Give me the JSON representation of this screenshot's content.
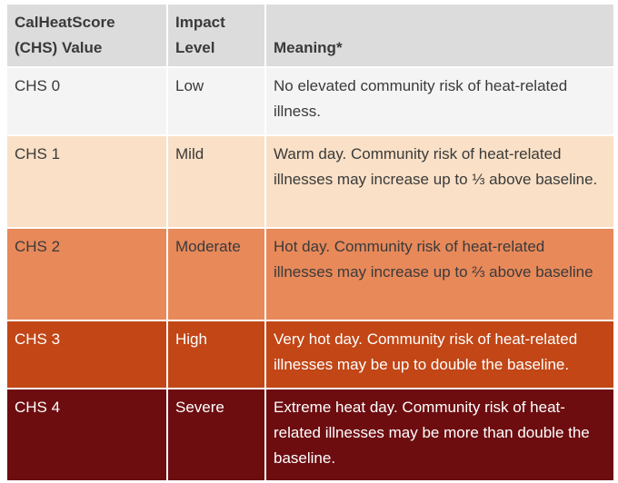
{
  "headers": {
    "value_line1": "CalHeatScore",
    "value_line2": "(CHS) Value",
    "impact_line1": "Impact",
    "impact_line2": "Level",
    "meaning": "Meaning*"
  },
  "rows": [
    {
      "value": "CHS 0",
      "level": "Low",
      "meaning": "No elevated community risk of heat-related illness.",
      "color": "#f4f4f4"
    },
    {
      "value": "CHS 1",
      "level": "Mild",
      "meaning": "Warm day. Community risk of heat-related illnesses may increase up to ⅓ above baseline.",
      "color": "#f9e0c6"
    },
    {
      "value": "CHS 2",
      "level": "Moderate",
      "meaning": "Hot day. Community risk of heat-related illnesses may increase up to ⅔ above baseline",
      "color": "#e8895a"
    },
    {
      "value": "CHS 3",
      "level": "High",
      "meaning": "Very hot day. Community risk of heat-related illnesses may be up to double the baseline.",
      "color": "#c24616"
    },
    {
      "value": "CHS 4",
      "level": "Severe",
      "meaning": "Extreme heat day. Community risk of heat-related illnesses may be more than double the baseline.",
      "color": "#6d0d10"
    }
  ]
}
